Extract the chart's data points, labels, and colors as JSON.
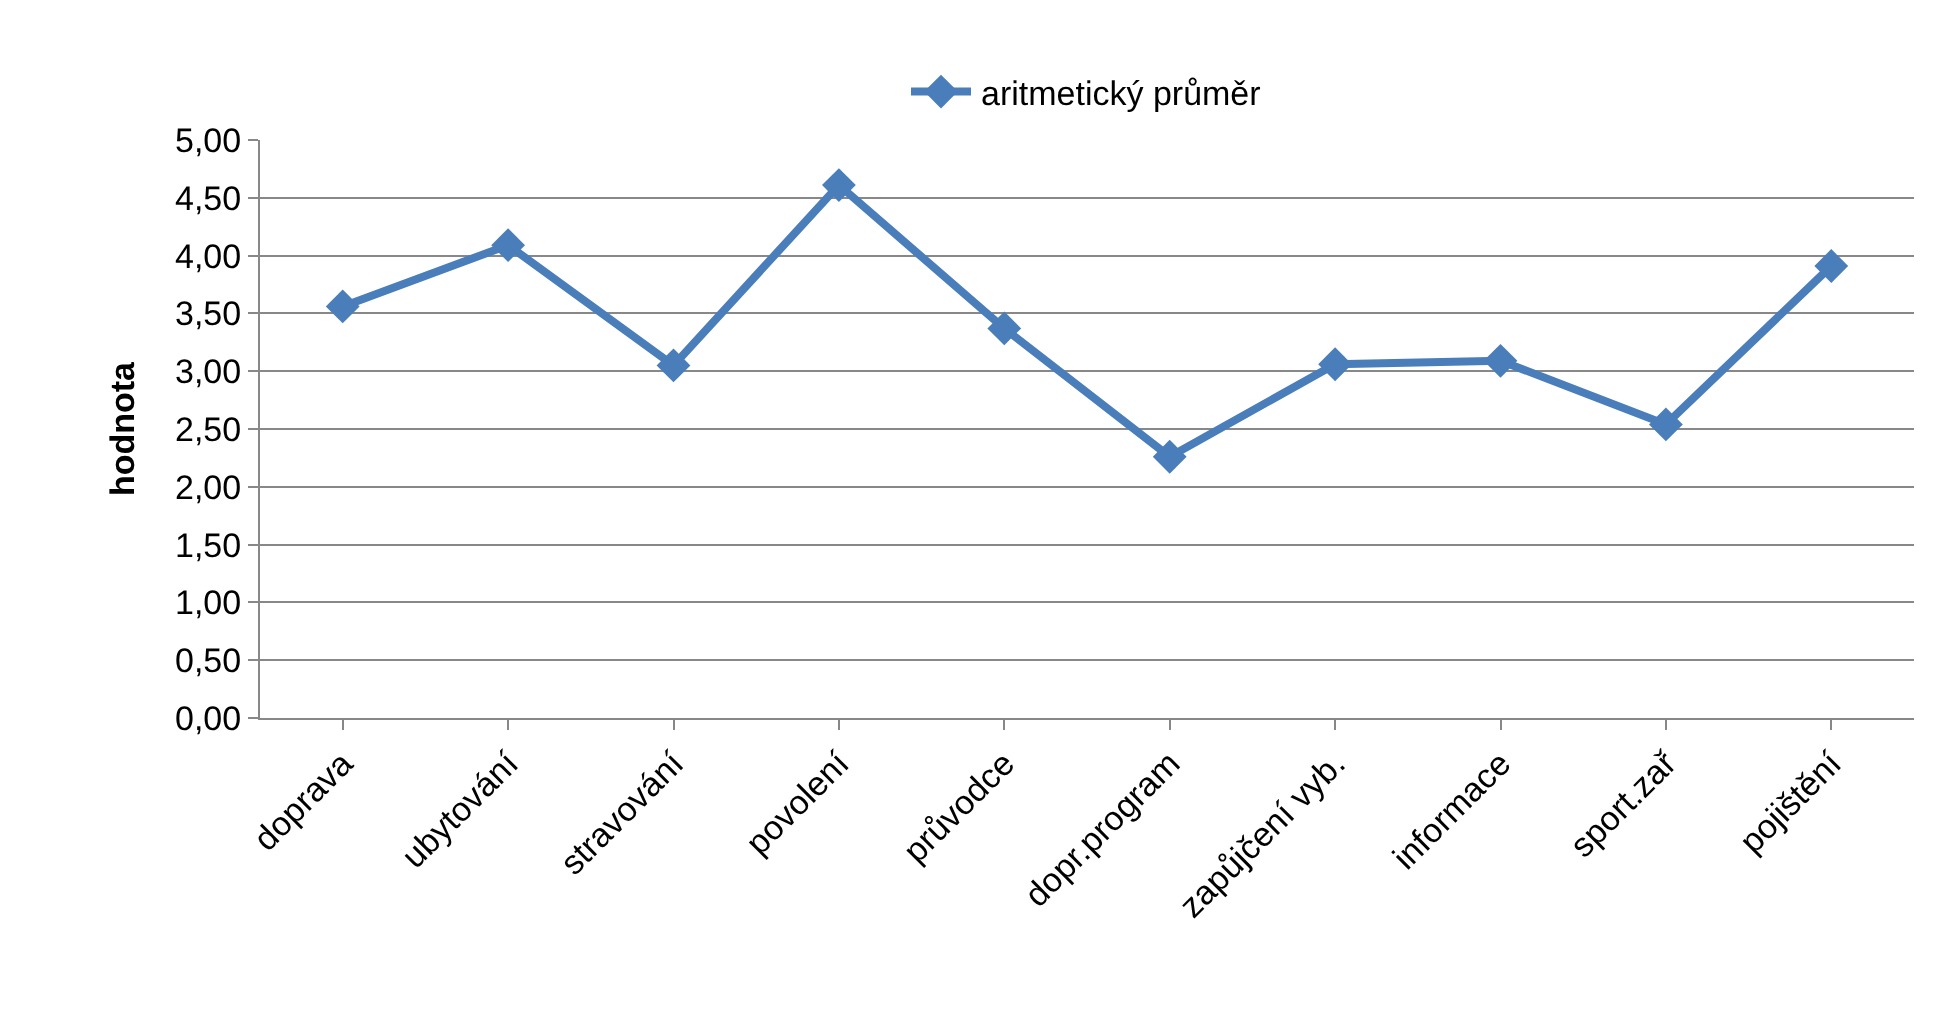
{
  "chart_data": {
    "type": "line",
    "ylabel": "hodnota",
    "categories": [
      "doprava",
      "ubytování",
      "stravování",
      "povolení",
      "průvodce",
      "dopr.program",
      "zapůjčení vyb.",
      "informace",
      "sport.zař",
      "pojištění"
    ],
    "series": [
      {
        "name": "aritmetický průměr",
        "color": "#4a7ebb",
        "values": [
          3.56,
          4.09,
          3.05,
          4.61,
          3.37,
          2.26,
          3.06,
          3.09,
          2.54,
          3.91
        ]
      }
    ],
    "ylim": [
      0,
      5
    ],
    "yticks": [
      {
        "value": 0,
        "label": "0,00"
      },
      {
        "value": 0.5,
        "label": "0,50"
      },
      {
        "value": 1,
        "label": "1,00"
      },
      {
        "value": 1.5,
        "label": "1,50"
      },
      {
        "value": 2,
        "label": "2,00"
      },
      {
        "value": 2.5,
        "label": "2,50"
      },
      {
        "value": 3,
        "label": "3,00"
      },
      {
        "value": 3.5,
        "label": "3,50"
      },
      {
        "value": 4,
        "label": "4,00"
      },
      {
        "value": 4.5,
        "label": "4,50"
      },
      {
        "value": 5,
        "label": "5,00"
      }
    ],
    "grid": "y",
    "legend": "top",
    "marker": "diamond",
    "line_style": "solid"
  }
}
